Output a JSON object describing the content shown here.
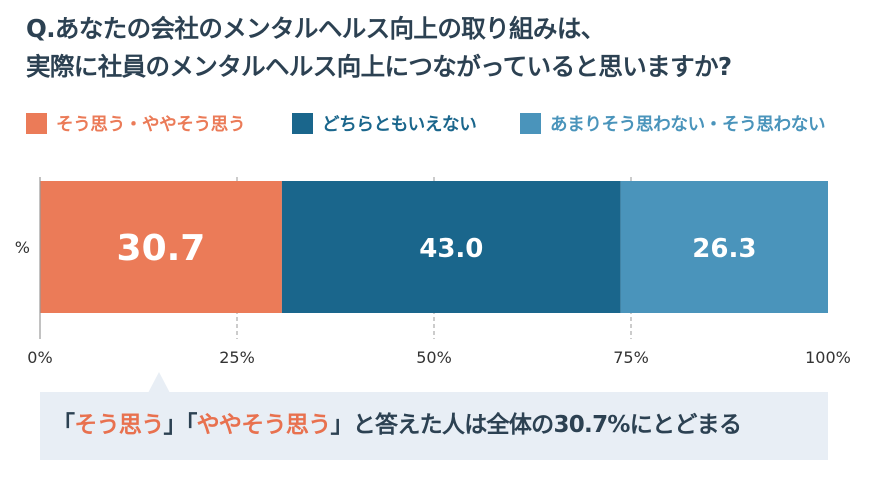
{
  "title": {
    "line1": "Q.あなたの会社のメンタルヘルス向上の取り組みは、",
    "line2": "実際に社員のメンタルヘルス向上につながっていると思いますか?"
  },
  "legend": [
    {
      "label": "そう思う・ややそう思う",
      "color": "#eb7b58"
    },
    {
      "label": "どちらともいえない",
      "color": "#1a668c"
    },
    {
      "label": "あまりそう思わない・そう思わない",
      "color": "#4a94bb"
    }
  ],
  "colors": {
    "title": "#2c4152",
    "highlight": "#e8714f",
    "callout_bg": "#e8eef5",
    "axis": "#999999",
    "tick_label": "#333333"
  },
  "chart_data": {
    "type": "bar",
    "orientation": "horizontal",
    "stacked": true,
    "categories": [
      "%"
    ],
    "series": [
      {
        "name": "そう思う・ややそう思う",
        "values": [
          30.7
        ],
        "label": "30.7",
        "color": "#eb7b58"
      },
      {
        "name": "どちらともいえない",
        "values": [
          43.0
        ],
        "label": "43.0",
        "color": "#1a668c"
      },
      {
        "name": "あまりそう思わない・そう思わない",
        "values": [
          26.3
        ],
        "label": "26.3",
        "color": "#4a94bb"
      }
    ],
    "xlim": [
      0,
      100
    ],
    "xticks": [
      0,
      25,
      50,
      75,
      100
    ],
    "xtick_labels": [
      "0%",
      "25%",
      "50%",
      "75%",
      "100%"
    ],
    "ylabel": "%",
    "grid": "dashed vertical",
    "legend_position": "top"
  },
  "callout": {
    "open1": "「",
    "h1": "そう思う",
    "mid": "」「",
    "h2": "ややそう思う",
    "close": "」",
    "rest": "と答えた人は全体の30.7%にとどまる"
  }
}
